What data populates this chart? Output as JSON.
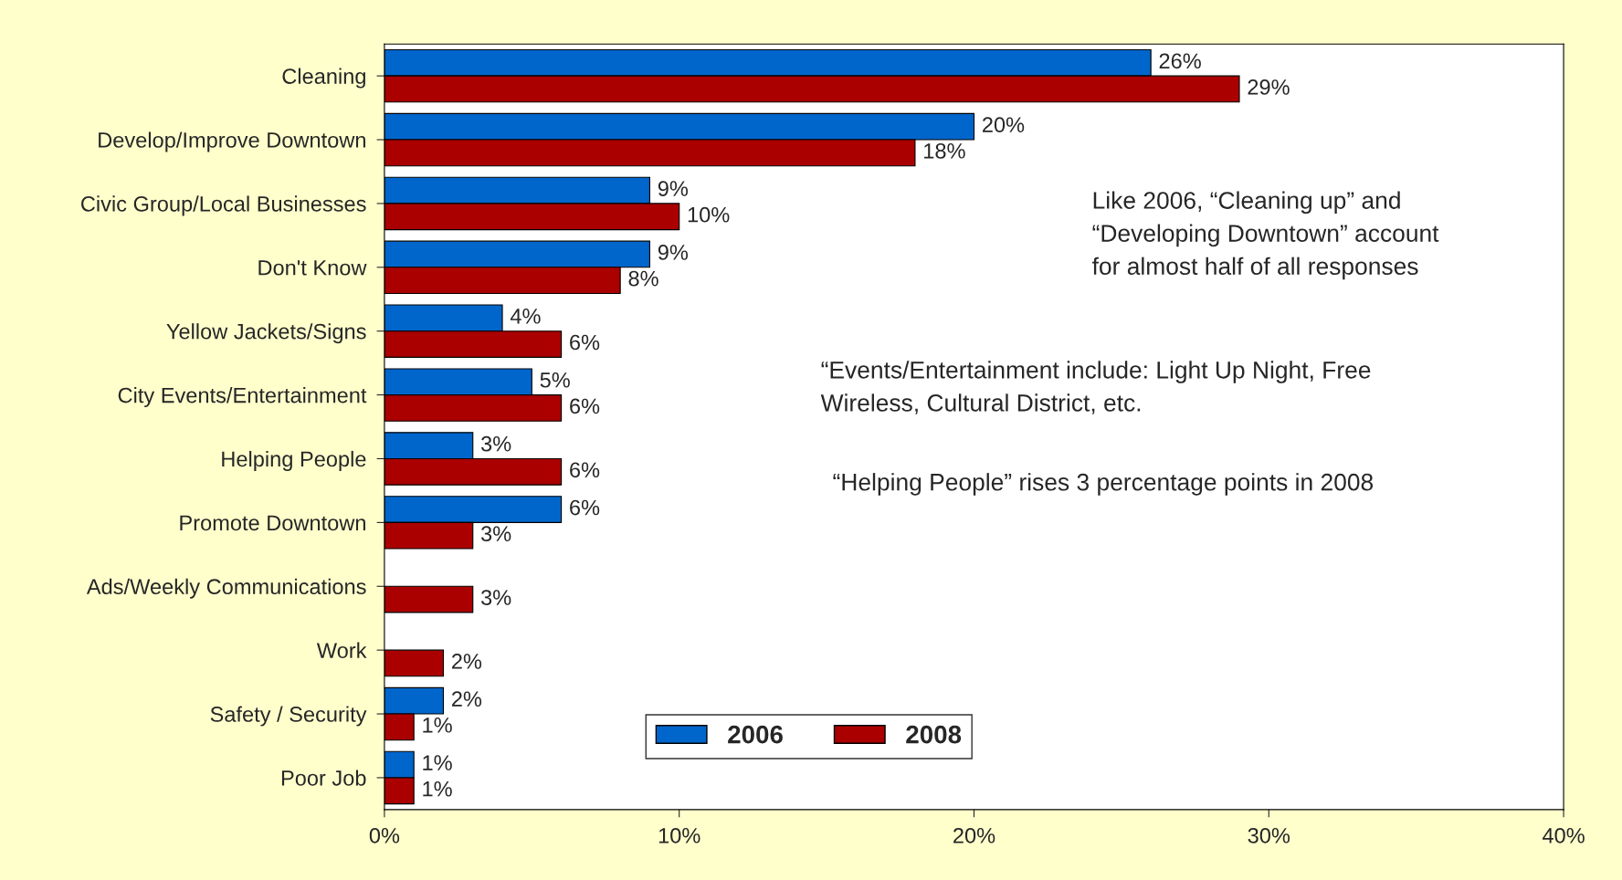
{
  "chart_data": {
    "type": "bar",
    "orientation": "horizontal",
    "categories": [
      "Cleaning",
      "Develop/Improve Downtown",
      "Civic Group/Local Businesses",
      "Don't Know",
      "Yellow Jackets/Signs",
      "City Events/Entertainment",
      "Helping People",
      "Promote Downtown",
      "Ads/Weekly Communications",
      "Work",
      "Safety / Security",
      "Poor Job"
    ],
    "series": [
      {
        "name": "2006",
        "color": "#0066cc",
        "values": [
          26,
          20,
          9,
          9,
          4,
          5,
          3,
          6,
          null,
          null,
          2,
          1
        ],
        "value_labels": [
          "26%",
          "20%",
          "9%",
          "9%",
          "4%",
          "5%",
          "3%",
          "6%",
          null,
          null,
          "2%",
          "1%"
        ]
      },
      {
        "name": "2008",
        "color": "#aa0000",
        "values": [
          29,
          18,
          10,
          8,
          6,
          6,
          6,
          3,
          3,
          2,
          1,
          1
        ],
        "value_labels": [
          "29%",
          "18%",
          "10%",
          "8%",
          "6%",
          "6%",
          "6%",
          "3%",
          "3%",
          "2%",
          "1%",
          "1%"
        ]
      }
    ],
    "xlim": [
      0,
      40
    ],
    "xticks": [
      {
        "value": 0,
        "label": "0%"
      },
      {
        "value": 10,
        "label": "10%"
      },
      {
        "value": 20,
        "label": "20%"
      },
      {
        "value": 30,
        "label": "30%"
      },
      {
        "value": 40,
        "label": "40%"
      }
    ],
    "grid": false,
    "legend": "bottom",
    "annotations": [
      "Like 2006, “Cleaning up” and\n“Developing Downtown” account\nfor almost half of all responses",
      "“Events/Entertainment include: Light Up Night, Free\nWireless, Cultural District, etc.",
      "“Helping People” rises 3 percentage points in 2008"
    ]
  }
}
